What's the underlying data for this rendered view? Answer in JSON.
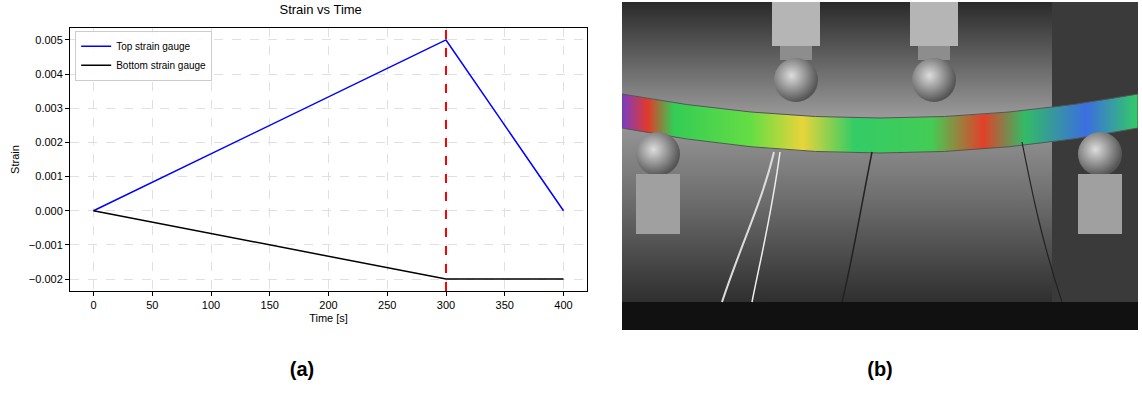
{
  "chart_data": {
    "type": "line",
    "title": "Strain vs Time",
    "x_label": "Time [s]",
    "y_label": "Strain",
    "x": [
      0,
      300,
      400
    ],
    "series": [
      {
        "name": "Top strain gauge",
        "color": "#0000ff",
        "line_style": "solid",
        "values": [
          0,
          0.005,
          0
        ]
      },
      {
        "name": "Bottom strain gauge",
        "color": "#000000",
        "line_style": "solid",
        "values": [
          0,
          -0.002,
          -0.002
        ]
      }
    ],
    "reference_line": {
      "x": 300,
      "color": "#ff0000",
      "line_style": "dashed"
    },
    "xlim": [
      -20,
      420
    ],
    "xticks": [
      0,
      50,
      100,
      150,
      200,
      250,
      300,
      350,
      400
    ],
    "ylim": [
      -0.00235,
      0.00535
    ],
    "yticks": [
      {
        "value": -0.002,
        "label": "−0.002"
      },
      {
        "value": -0.001,
        "label": "−0.001"
      },
      {
        "value": 0,
        "label": "0.000"
      },
      {
        "value": 0.001,
        "label": "0.001"
      },
      {
        "value": 0.002,
        "label": "0.002"
      },
      {
        "value": 0.003,
        "label": "0.003"
      },
      {
        "value": 0.004,
        "label": "0.004"
      },
      {
        "value": 0.005,
        "label": "0.005"
      }
    ],
    "grid": true,
    "legend": "upper left"
  },
  "panel_labels": [
    "(a)",
    "(b)"
  ]
}
